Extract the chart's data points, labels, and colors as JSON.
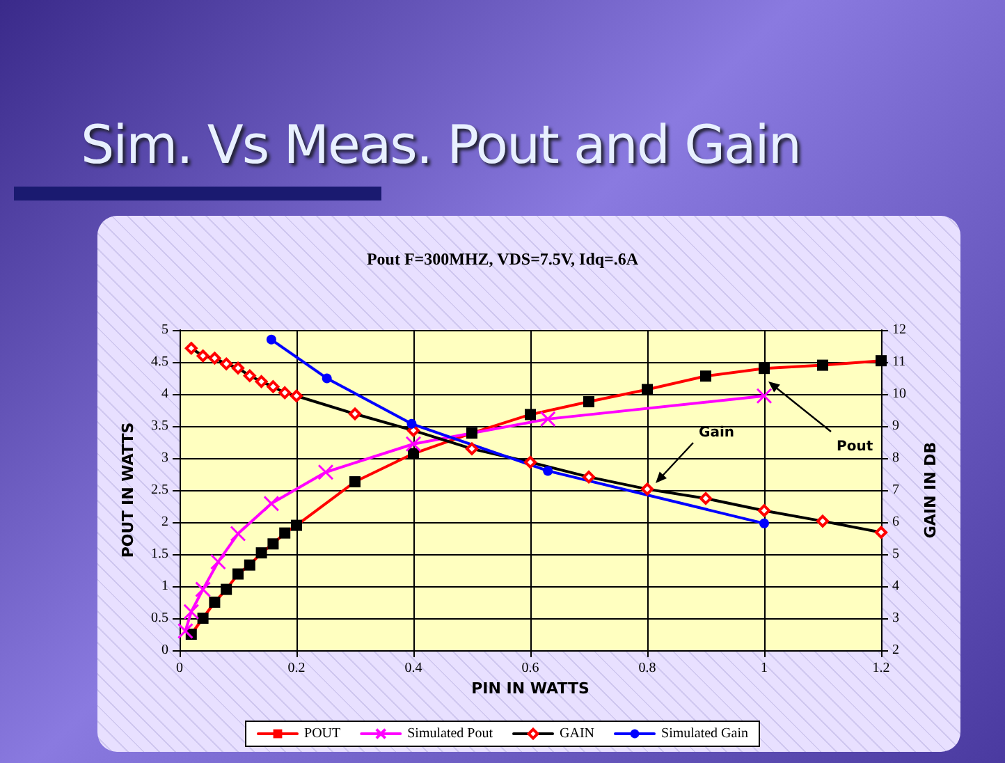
{
  "chart_data": {
    "type": "line",
    "title": "Sim. Vs Meas. Pout and Gain",
    "subtitle": "Pout F=300MHZ, VDS=7.5V, Idq=.6A",
    "xlabel": "PIN IN WATTS",
    "ylabel": "POUT IN WATTS",
    "y2label": "GAIN IN DB",
    "xlim": [
      0,
      1.2
    ],
    "xticks": [
      0,
      0.2,
      0.4,
      0.6,
      0.8,
      1,
      1.2
    ],
    "ylim": [
      0,
      5
    ],
    "yticks": [
      0,
      0.5,
      1,
      1.5,
      2,
      2.5,
      3,
      3.5,
      4,
      4.5,
      5
    ],
    "y2lim": [
      2,
      12
    ],
    "y2ticks": [
      2,
      3,
      4,
      5,
      6,
      7,
      8,
      9,
      10,
      11,
      12
    ],
    "grid": true,
    "legend": "bottom",
    "annotations": [
      "Gain",
      "Pout"
    ],
    "series": [
      {
        "name": "POUT",
        "color": "#ff0000",
        "marker": "square",
        "colors": [
          "#000000",
          "#000000",
          "#000000",
          "#000000",
          "#000000",
          "#000000",
          "#000000",
          "#000000",
          "#000000",
          "#000000",
          "#000000",
          "#000000",
          "#000000",
          "#000000",
          "#000000",
          "#000000",
          "#000000",
          "#000000",
          "#000000",
          "#000000"
        ],
        "x": [
          0.02,
          0.04,
          0.06,
          0.08,
          0.1,
          0.12,
          0.14,
          0.16,
          0.18,
          0.2,
          0.3,
          0.4,
          0.5,
          0.6,
          0.7,
          0.8,
          0.9,
          1,
          1.1,
          1.2
        ],
        "values": [
          0.25,
          0.5,
          0.75,
          0.95,
          1.19,
          1.33,
          1.52,
          1.66,
          1.83,
          1.95,
          2.63,
          3.07,
          3.39,
          3.68,
          3.88,
          4.07,
          4.28,
          4.4,
          4.45,
          4.52
        ]
      },
      {
        "name": "Simulated Pout",
        "color": "#ff00ff",
        "marker": "cross",
        "x": [
          0.01,
          0.02,
          0.04,
          0.066,
          0.1,
          0.157,
          0.25,
          0.4,
          0.63,
          1
        ],
        "values": [
          0.3,
          0.6,
          0.95,
          1.38,
          1.82,
          2.29,
          2.78,
          3.22,
          3.61,
          3.97
        ]
      },
      {
        "name": "GAIN",
        "color": "#000000",
        "marker": "diamond",
        "axis": "y2",
        "colors": [
          "#ff0000",
          "#ff0000",
          "#ff0000",
          "#ff0000",
          "#ff0000",
          "#ff0000",
          "#ff0000",
          "#ff0000",
          "#ff0000",
          "#ff0000",
          "#ff0000",
          "#ff0000",
          "#ff0000",
          "#ff0000",
          "#ff0000",
          "#ff0000",
          "#ff0000",
          "#ff0000",
          "#ff0000",
          "#ff0000"
        ],
        "x": [
          0.02,
          0.04,
          0.06,
          0.08,
          0.1,
          0.12,
          0.14,
          0.16,
          0.18,
          0.2,
          0.3,
          0.4,
          0.5,
          0.6,
          0.7,
          0.8,
          0.9,
          1,
          1.1,
          1.2
        ],
        "values": [
          11.43,
          11.19,
          11.12,
          10.94,
          10.81,
          10.57,
          10.39,
          10.23,
          10.04,
          9.94,
          9.38,
          8.86,
          8.29,
          7.87,
          7.41,
          7.03,
          6.74,
          6.36,
          6.03,
          5.68
        ]
      },
      {
        "name": "Simulated Gain",
        "color": "#0000ff",
        "marker": "circle",
        "axis": "y2",
        "x": [
          0.157,
          0.252,
          0.397,
          0.63,
          1
        ],
        "values": [
          11.7,
          10.49,
          9.07,
          7.6,
          5.96
        ]
      }
    ]
  }
}
